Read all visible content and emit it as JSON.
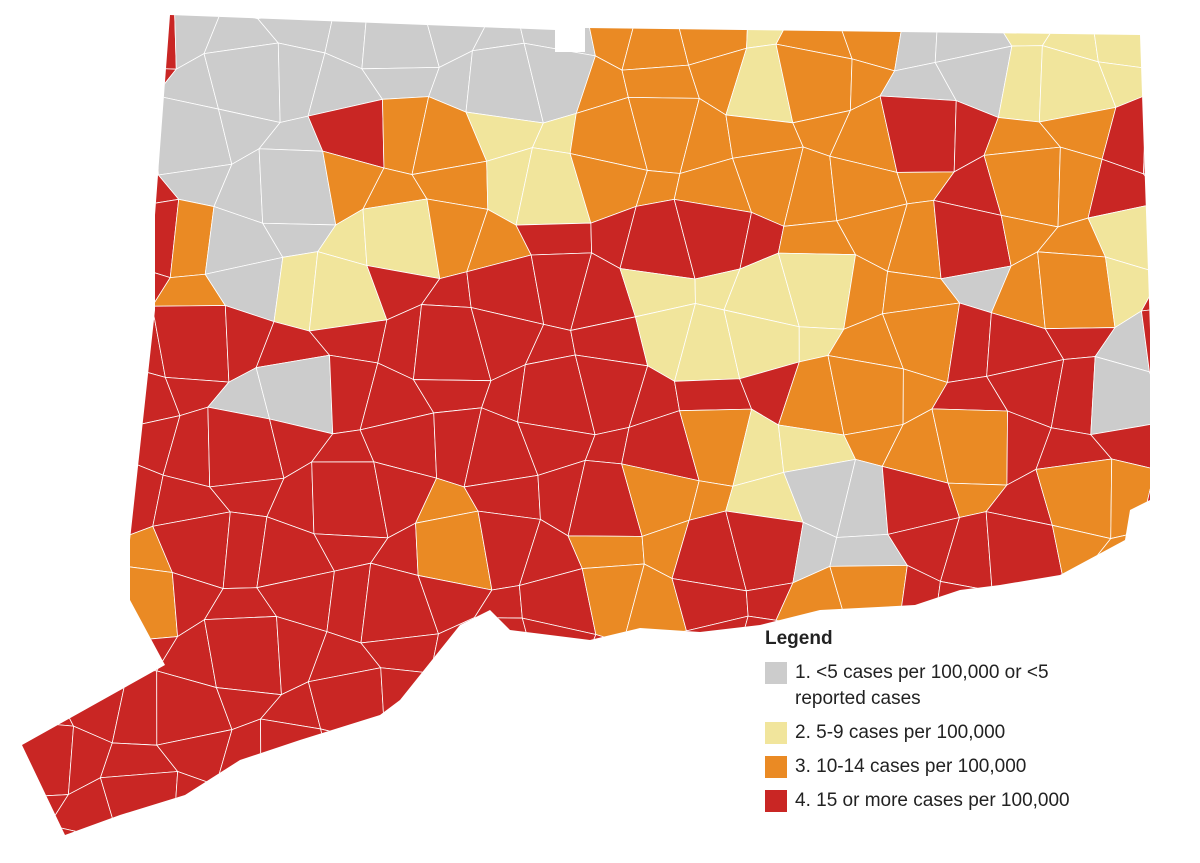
{
  "legend": {
    "title": "Legend",
    "items": [
      {
        "label": "1. <5 cases per 100,000 or <5 reported cases",
        "color": "#cccccc"
      },
      {
        "label": "2. 5-9 cases per 100,000",
        "color": "#f1e59c"
      },
      {
        "label": "3. 10-14 cases per 100,000",
        "color": "#ea8a24"
      },
      {
        "label": "4. 15 or more cases per 100,000",
        "color": "#c92624"
      }
    ]
  }
}
